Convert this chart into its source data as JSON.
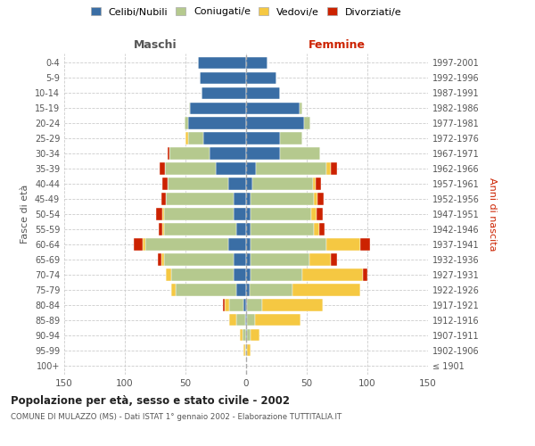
{
  "age_groups": [
    "100+",
    "95-99",
    "90-94",
    "85-89",
    "80-84",
    "75-79",
    "70-74",
    "65-69",
    "60-64",
    "55-59",
    "50-54",
    "45-49",
    "40-44",
    "35-39",
    "30-34",
    "25-29",
    "20-24",
    "15-19",
    "10-14",
    "5-9",
    "0-4"
  ],
  "birth_years": [
    "≤ 1901",
    "1902-1906",
    "1907-1911",
    "1912-1916",
    "1917-1921",
    "1922-1926",
    "1927-1931",
    "1932-1936",
    "1937-1941",
    "1942-1946",
    "1947-1951",
    "1952-1956",
    "1957-1961",
    "1962-1966",
    "1967-1971",
    "1972-1976",
    "1977-1981",
    "1982-1986",
    "1987-1991",
    "1992-1996",
    "1997-2001"
  ],
  "maschi": {
    "celibi": [
      0,
      0,
      0,
      1,
      2,
      8,
      10,
      10,
      15,
      8,
      10,
      10,
      15,
      25,
      30,
      35,
      48,
      46,
      37,
      38,
      40
    ],
    "coniugati": [
      0,
      1,
      3,
      7,
      12,
      50,
      52,
      58,
      68,
      60,
      58,
      56,
      50,
      42,
      33,
      13,
      3,
      1,
      0,
      0,
      0
    ],
    "vedovi": [
      0,
      1,
      2,
      6,
      4,
      4,
      4,
      2,
      2,
      1,
      1,
      0,
      0,
      0,
      0,
      2,
      0,
      0,
      0,
      0,
      0
    ],
    "divorziati": [
      0,
      0,
      0,
      0,
      1,
      0,
      0,
      3,
      8,
      3,
      5,
      4,
      4,
      4,
      2,
      0,
      0,
      0,
      0,
      0,
      0
    ]
  },
  "femmine": {
    "nubili": [
      0,
      0,
      1,
      1,
      1,
      3,
      4,
      4,
      4,
      4,
      4,
      4,
      5,
      8,
      28,
      28,
      48,
      44,
      28,
      25,
      18
    ],
    "coniugate": [
      0,
      1,
      3,
      6,
      12,
      35,
      42,
      48,
      62,
      52,
      50,
      52,
      50,
      58,
      33,
      18,
      5,
      2,
      0,
      0,
      0
    ],
    "vedove": [
      0,
      3,
      7,
      38,
      50,
      56,
      50,
      18,
      28,
      4,
      4,
      3,
      2,
      4,
      0,
      0,
      0,
      0,
      0,
      0,
      0
    ],
    "divorziate": [
      0,
      0,
      0,
      0,
      0,
      0,
      4,
      5,
      8,
      5,
      5,
      5,
      5,
      5,
      0,
      0,
      0,
      0,
      0,
      0,
      0
    ]
  },
  "colors": {
    "celibi": "#3a6ea5",
    "coniugati": "#b5c98e",
    "vedovi": "#f5c842",
    "divorziati": "#cc2200"
  },
  "title": "Popolazione per età, sesso e stato civile - 2002",
  "subtitle": "COMUNE DI MULAZZO (MS) - Dati ISTAT 1° gennaio 2002 - Elaborazione TUTTITALIA.IT",
  "ylabel_left": "Fasce di età",
  "ylabel_right": "Anni di nascita",
  "xlabel_left": "Maschi",
  "xlabel_right": "Femmine",
  "xlim": 150,
  "background_color": "#ffffff",
  "grid_color": "#cccccc"
}
